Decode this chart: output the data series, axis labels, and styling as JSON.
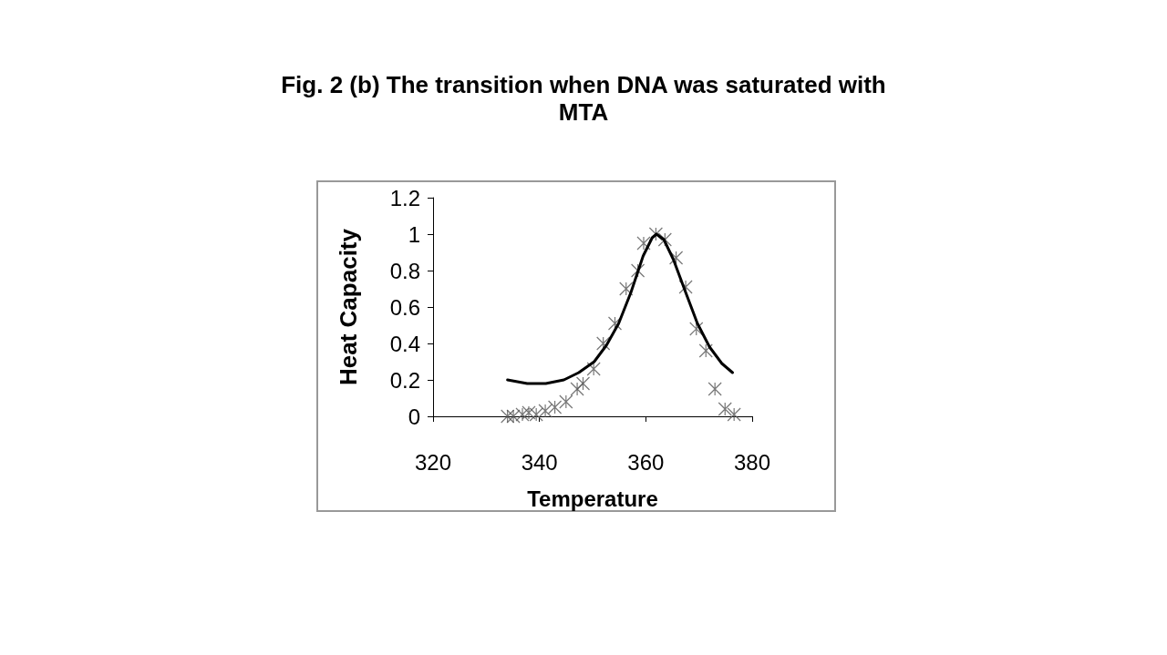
{
  "chart_data": {
    "type": "scatter",
    "title": "Fig. 2 (b) The transition when DNA was saturated with MTA",
    "xlabel": "Temperature",
    "ylabel": "Heat Capacity",
    "xlim": [
      320,
      380
    ],
    "xticks": [
      320,
      340,
      360,
      380
    ],
    "ylim": [
      0,
      1.2
    ],
    "yticks": [
      0,
      0.2,
      0.4,
      0.6,
      0.8,
      1,
      1.2
    ],
    "grid": false,
    "series": [
      {
        "marker": "cross",
        "color": "#555555",
        "x": [
          334.0,
          335.1,
          336.8,
          338.0,
          339.4,
          341.1,
          342.9,
          345.0,
          347.1,
          348.2,
          350.2,
          352.0,
          354.2,
          356.3,
          358.5,
          359.6,
          361.9,
          363.6,
          365.7,
          367.5,
          369.5,
          371.3,
          373.0,
          374.9,
          376.6
        ],
        "values": [
          0,
          0,
          0.01,
          0.02,
          0.01,
          0.03,
          0.05,
          0.08,
          0.15,
          0.18,
          0.26,
          0.4,
          0.51,
          0.7,
          0.8,
          0.95,
          1.0,
          0.97,
          0.87,
          0.71,
          0.48,
          0.36,
          0.15,
          0.04,
          0.01
        ]
      },
      {
        "type": "line",
        "marker": "none",
        "line_style": "solid",
        "color": "#000000",
        "x": [
          334.0,
          337.7,
          341.2,
          344.6,
          347.4,
          350.3,
          352.6,
          354.9,
          357.2,
          359.5,
          361.2,
          362.0,
          363.4,
          365.2,
          367.5,
          369.7,
          372.0,
          374.3,
          376.3
        ],
        "values": [
          0.2,
          0.18,
          0.18,
          0.2,
          0.24,
          0.3,
          0.39,
          0.51,
          0.68,
          0.88,
          0.98,
          1.0,
          0.97,
          0.86,
          0.68,
          0.51,
          0.38,
          0.29,
          0.24
        ]
      }
    ]
  }
}
